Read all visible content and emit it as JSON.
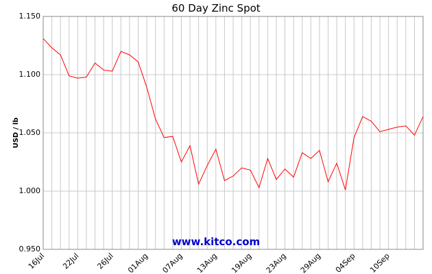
{
  "chart_data": {
    "type": "line",
    "title": "60 Day Zinc Spot",
    "y_label": "USD / lb",
    "watermark": "www.kitco.com",
    "categories": [
      "16Jul",
      null,
      null,
      null,
      "22Jul",
      null,
      null,
      null,
      "26Jul",
      null,
      null,
      null,
      "01Aug",
      null,
      null,
      null,
      "07Aug",
      null,
      null,
      null,
      "13Aug",
      null,
      null,
      null,
      "19Aug",
      null,
      null,
      null,
      "23Aug",
      null,
      null,
      null,
      "29Aug",
      null,
      null,
      null,
      "04Sep",
      null,
      null,
      null,
      "10Sep",
      null,
      null,
      null,
      null
    ],
    "series": [
      {
        "name": "Zinc",
        "color": "#ff0000",
        "values": [
          1.131,
          1.123,
          1.117,
          1.099,
          1.097,
          1.098,
          1.11,
          1.104,
          1.103,
          1.12,
          1.117,
          1.111,
          1.089,
          1.062,
          1.046,
          1.047,
          1.025,
          1.039,
          1.006,
          1.022,
          1.036,
          1.009,
          1.013,
          1.02,
          1.018,
          1.003,
          1.028,
          1.01,
          1.019,
          1.012,
          1.033,
          1.028,
          1.035,
          1.008,
          1.024,
          1.001,
          1.046,
          1.064,
          1.06,
          1.051,
          1.053,
          1.055,
          1.056,
          1.048,
          1.064
        ]
      }
    ],
    "ylim": [
      0.95,
      1.15
    ],
    "yticks": [
      {
        "value": 0.95,
        "label": "0.950"
      },
      {
        "value": 1.0,
        "label": "1.000"
      },
      {
        "value": 1.05,
        "label": "1.050"
      },
      {
        "value": 1.1,
        "label": "1.100"
      },
      {
        "value": 1.15,
        "label": "1.150"
      }
    ],
    "grid": true
  }
}
